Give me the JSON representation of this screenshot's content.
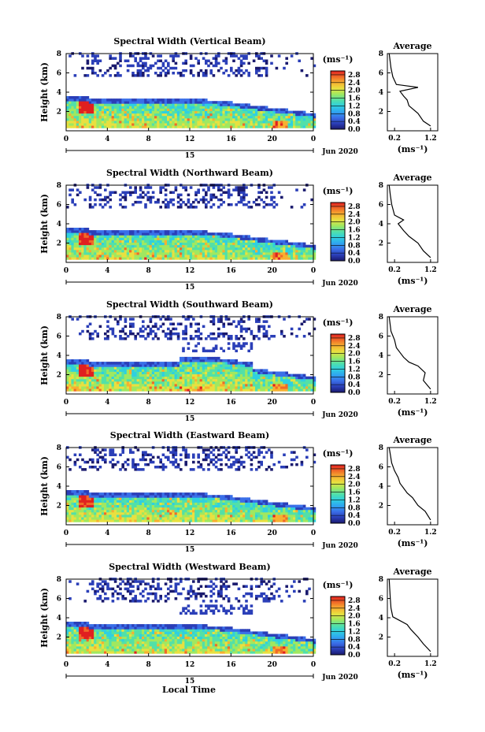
{
  "figure": {
    "time_label": "Local Time",
    "date_label": "Jun 2020",
    "day_label": "15",
    "height_label": "Height (km)",
    "unit_label": "(ms⁻¹)",
    "avg_title": "Average",
    "avg_xlabel": "(ms⁻¹)"
  },
  "colorbar": {
    "ticks": [
      "0.0",
      "0.4",
      "0.8",
      "1.2",
      "1.6",
      "2.0",
      "2.4",
      "2.8"
    ],
    "range": [
      0,
      3.0
    ],
    "colormap": [
      "#1a1a6e",
      "#2b3fb8",
      "#3a6fe8",
      "#2fa6f0",
      "#2fd0e0",
      "#52e0a8",
      "#a0e860",
      "#e8e040",
      "#f7b030",
      "#f06a28",
      "#e02020"
    ]
  },
  "panels": [
    {
      "title": "Spectral Width (Vertical Beam)",
      "avg_profile": [
        [
          1.2,
          0.5
        ],
        [
          1.0,
          1.0
        ],
        [
          0.85,
          1.8
        ],
        [
          0.6,
          2.6
        ],
        [
          0.55,
          3.2
        ],
        [
          0.45,
          3.6
        ],
        [
          0.35,
          4.1
        ],
        [
          0.85,
          4.5
        ],
        [
          0.25,
          4.8
        ],
        [
          0.15,
          5.6
        ],
        [
          0.1,
          6.5
        ],
        [
          0.05,
          8
        ]
      ]
    },
    {
      "title": "Spectral Width (Northward Beam)",
      "avg_profile": [
        [
          1.2,
          0.5
        ],
        [
          1.0,
          1.2
        ],
        [
          0.85,
          2.0
        ],
        [
          0.6,
          2.7
        ],
        [
          0.45,
          3.3
        ],
        [
          0.3,
          4.0
        ],
        [
          0.45,
          4.4
        ],
        [
          0.2,
          4.9
        ],
        [
          0.12,
          6.0
        ],
        [
          0.08,
          7.0
        ],
        [
          0.05,
          8
        ]
      ]
    },
    {
      "title": "Spectral Width (Southward Beam)",
      "avg_profile": [
        [
          1.2,
          0.5
        ],
        [
          1.0,
          1.4
        ],
        [
          1.05,
          2.2
        ],
        [
          0.85,
          2.9
        ],
        [
          0.6,
          3.3
        ],
        [
          0.45,
          3.8
        ],
        [
          0.35,
          4.3
        ],
        [
          0.25,
          4.8
        ],
        [
          0.2,
          5.6
        ],
        [
          0.1,
          6.5
        ],
        [
          0.05,
          8
        ]
      ]
    },
    {
      "title": "Spectral Width (Eastward Beam)",
      "avg_profile": [
        [
          1.2,
          0.5
        ],
        [
          1.05,
          1.4
        ],
        [
          0.85,
          2.0
        ],
        [
          0.7,
          2.8
        ],
        [
          0.55,
          3.3
        ],
        [
          0.45,
          3.8
        ],
        [
          0.35,
          4.3
        ],
        [
          0.3,
          4.9
        ],
        [
          0.2,
          5.6
        ],
        [
          0.12,
          6.4
        ],
        [
          0.05,
          8
        ]
      ]
    },
    {
      "title": "Spectral Width (Westward Beam)",
      "avg_profile": [
        [
          1.2,
          0.5
        ],
        [
          1.0,
          1.3
        ],
        [
          0.85,
          2.0
        ],
        [
          0.65,
          2.8
        ],
        [
          0.55,
          3.3
        ],
        [
          0.35,
          3.7
        ],
        [
          0.15,
          4.1
        ],
        [
          0.1,
          5.0
        ],
        [
          0.08,
          6.0
        ],
        [
          0.05,
          8
        ]
      ]
    }
  ],
  "chart_data": {
    "type": "heatmap",
    "x_ticks": [
      "0",
      "4",
      "8",
      "12",
      "16",
      "20",
      "0"
    ],
    "xlim": [
      0,
      24
    ],
    "y_ticks": [
      "2",
      "4",
      "6",
      "8"
    ],
    "ylim": [
      0,
      8
    ],
    "colorbar_range": [
      0,
      3.0
    ],
    "avg_x_ticks": [
      "0.2",
      "1.2"
    ],
    "avg_xlim": [
      0,
      1.4
    ],
    "avg_y_ticks": [
      "2",
      "4",
      "6",
      "8"
    ],
    "avg_ylim": [
      0,
      8
    ]
  }
}
